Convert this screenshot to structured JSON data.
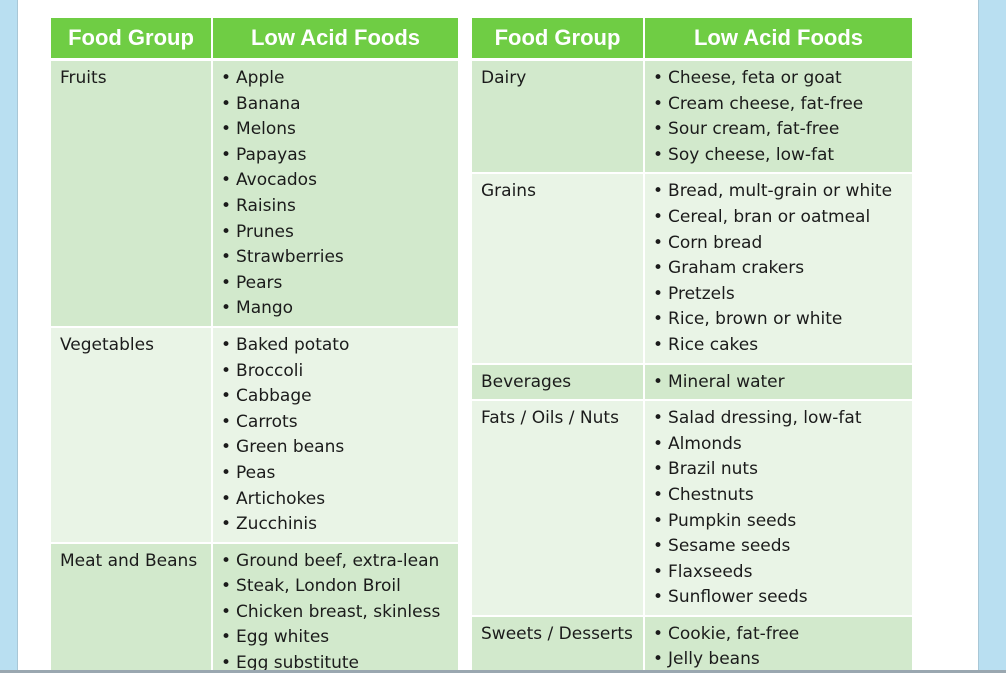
{
  "tables": [
    {
      "headers": [
        "Food Group",
        "Low Acid Foods"
      ],
      "rows": [
        {
          "group": "Fruits",
          "items": [
            "Apple",
            "Banana",
            "Melons",
            "Papayas",
            "Avocados",
            "Raisins",
            "Prunes",
            "Strawberries",
            "Pears",
            "Mango"
          ]
        },
        {
          "group": "Vegetables",
          "items": [
            "Baked potato",
            "Broccoli",
            "Cabbage",
            "Carrots",
            "Green beans",
            "Peas",
            "Artichokes",
            "Zucchinis"
          ]
        },
        {
          "group": "Meat and Beans",
          "items": [
            "Ground beef, extra-lean",
            "Steak, London Broil",
            "Chicken breast, skinless",
            "Egg whites",
            "Egg substitute"
          ]
        }
      ]
    },
    {
      "headers": [
        "Food Group",
        "Low Acid Foods"
      ],
      "rows": [
        {
          "group": "Dairy",
          "items": [
            "Cheese, feta or goat",
            "Cream cheese, fat-free",
            "Sour cream, fat-free",
            "Soy cheese, low-fat"
          ]
        },
        {
          "group": "Grains",
          "items": [
            "Bread, mult-grain or white",
            "Cereal, bran or oatmeal",
            "Corn bread",
            "Graham crakers",
            "Pretzels",
            "Rice, brown or white",
            "Rice cakes"
          ]
        },
        {
          "group": "Beverages",
          "items": [
            "Mineral water"
          ]
        },
        {
          "group": "Fats / Oils / Nuts",
          "items": [
            "Salad dressing, low-fat",
            "Almonds",
            "Brazil nuts",
            "Chestnuts",
            "Pumpkin seeds",
            "Sesame seeds",
            "Flaxseeds",
            "Sunflower seeds"
          ]
        },
        {
          "group": "Sweets / Desserts",
          "items": [
            "Cookie, fat-free",
            "Jelly beans"
          ]
        }
      ]
    }
  ],
  "colors": {
    "header_green": "#6fcd44",
    "row_dark": "#d2e9cc",
    "row_light": "#e9f4e6",
    "page_background": "#b9dff1"
  }
}
